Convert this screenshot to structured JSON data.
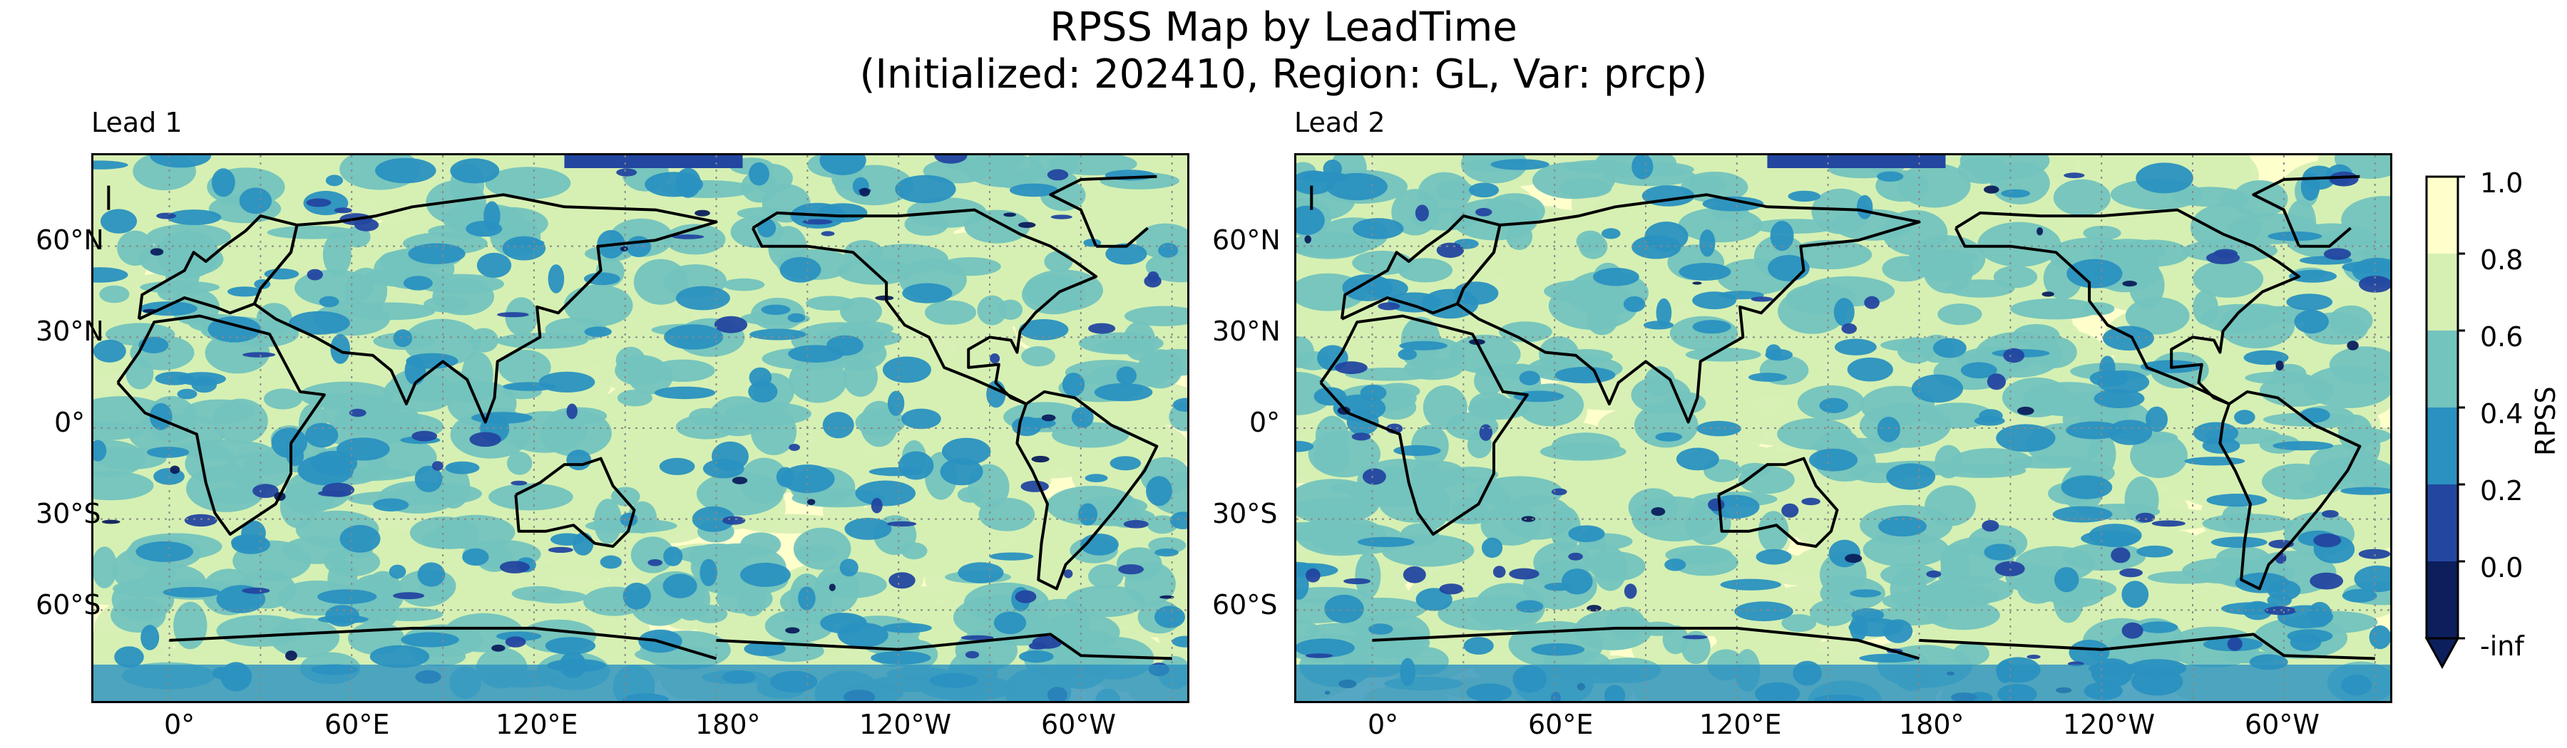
{
  "figure": {
    "title_line1": "RPSS Map by LeadTime",
    "title_line2": "(Initialized: 202410, Region: GL, Var: prcp)"
  },
  "panels": [
    {
      "title": "Lead 1"
    },
    {
      "title": "Lead 2"
    }
  ],
  "axes": {
    "lat_ticks": [
      "60°N",
      "30°N",
      "0°",
      "30°S",
      "60°S"
    ],
    "lon_ticks": [
      "0°",
      "60°E",
      "120°E",
      "180°",
      "120°W",
      "60°W"
    ]
  },
  "colorbar": {
    "label": "RPSS",
    "tick_labels": [
      "1.0",
      "0.8",
      "0.6",
      "0.4",
      "0.2",
      "0.0",
      "-inf"
    ],
    "bins": [
      {
        "range": "0.8–1.0",
        "color": "#ffffcc"
      },
      {
        "range": "0.6–0.8",
        "color": "#d6efb3"
      },
      {
        "range": "0.4–0.6",
        "color": "#73c3be"
      },
      {
        "range": "0.2–0.4",
        "color": "#2a91c0"
      },
      {
        "range": "0.0–0.2",
        "color": "#2346a0"
      },
      {
        "range": "-inf–0.0",
        "color": "#0c1f5c"
      }
    ],
    "extend": "min"
  },
  "chart_data": {
    "type": "heatmap",
    "projection": "PlateCarree, central longitude ~30°E",
    "variable": "prcp",
    "region": "GL",
    "initialized": "202410",
    "leads": [
      1,
      2
    ],
    "value_range": [
      -1000000000.0,
      1.0
    ],
    "gridlines": "dotted at 60° lon / 30° lat",
    "coastlines": true
  }
}
